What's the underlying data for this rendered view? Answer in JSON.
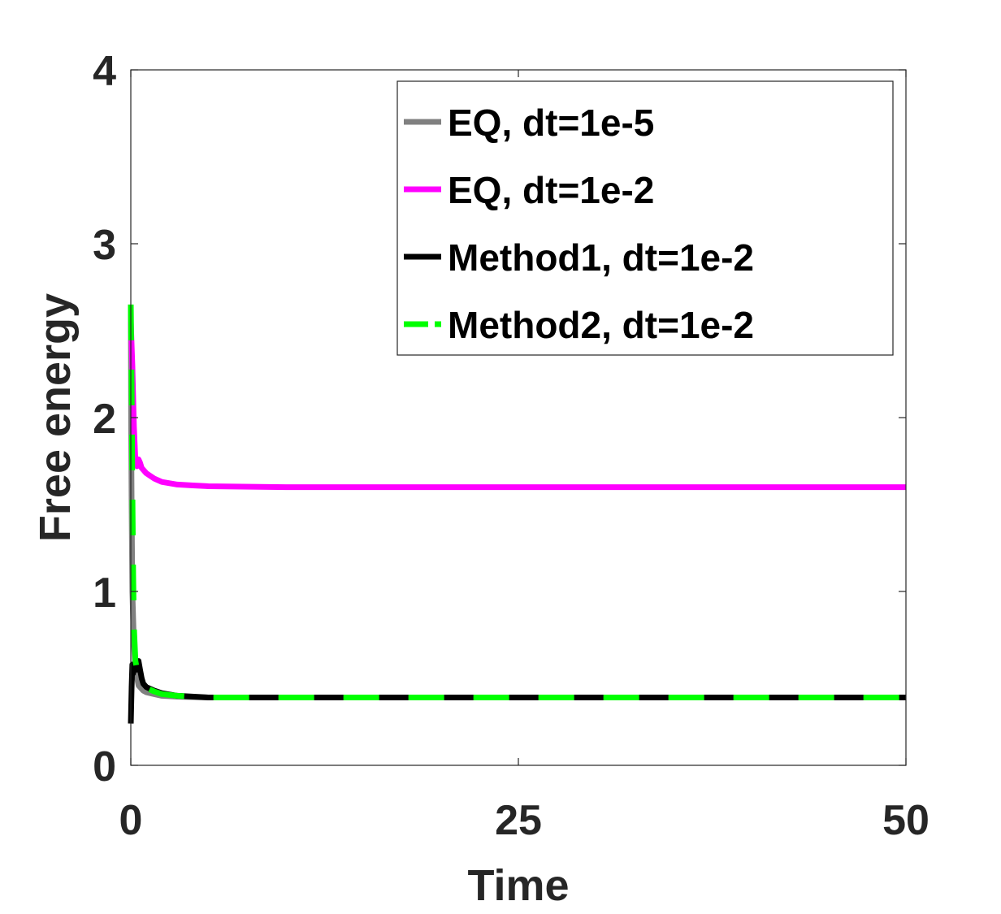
{
  "chart_data": {
    "type": "line",
    "xlabel": "Time",
    "ylabel": "Free energy",
    "xlim": [
      0,
      50
    ],
    "ylim": [
      0,
      4
    ],
    "xticks": [
      0,
      25,
      50
    ],
    "yticks": [
      0,
      1,
      2,
      3,
      4
    ],
    "grid": false,
    "legend_position": "top-right",
    "series": [
      {
        "name": "EQ, dt=1e-5",
        "color": "#808080",
        "style": "solid",
        "x": [
          0,
          0.02,
          0.05,
          0.1,
          0.2,
          0.3,
          0.5,
          0.8,
          1,
          1.5,
          2,
          3,
          5,
          10,
          20,
          30,
          40,
          50
        ],
        "y": [
          2.65,
          2.0,
          1.5,
          1.0,
          0.7,
          0.55,
          0.46,
          0.43,
          0.42,
          0.41,
          0.4,
          0.395,
          0.39,
          0.39,
          0.39,
          0.39,
          0.39,
          0.39
        ]
      },
      {
        "name": "EQ, dt=1e-2",
        "color": "#FF00FF",
        "style": "solid",
        "x": [
          0,
          0.1,
          0.2,
          0.3,
          0.4,
          0.5,
          0.6,
          0.7,
          1,
          1.5,
          2,
          3,
          4,
          5,
          10,
          20,
          30,
          40,
          50
        ],
        "y": [
          2.55,
          2.3,
          1.95,
          1.75,
          1.72,
          1.76,
          1.74,
          1.71,
          1.68,
          1.65,
          1.63,
          1.615,
          1.61,
          1.605,
          1.6,
          1.6,
          1.6,
          1.6,
          1.6
        ]
      },
      {
        "name": "Method1, dt=1e-2",
        "color": "#000000",
        "style": "solid",
        "x": [
          0,
          0.05,
          0.1,
          0.15,
          0.2,
          0.3,
          0.4,
          0.5,
          0.6,
          0.7,
          0.8,
          1,
          1.5,
          2,
          3,
          5,
          10,
          20,
          30,
          40,
          50
        ],
        "y": [
          0.24,
          0.45,
          0.58,
          0.53,
          0.55,
          0.56,
          0.55,
          0.6,
          0.55,
          0.5,
          0.47,
          0.45,
          0.43,
          0.415,
          0.4,
          0.39,
          0.39,
          0.39,
          0.39,
          0.39,
          0.39
        ]
      },
      {
        "name": "Method2, dt=1e-2",
        "color": "#00FF00",
        "style": "dashed",
        "x": [
          0,
          0.05,
          0.1,
          0.15,
          0.2,
          0.3,
          0.5,
          0.8,
          1,
          1.5,
          2,
          3,
          4,
          5,
          10,
          20,
          30,
          40,
          50
        ],
        "y": [
          2.65,
          2.2,
          1.6,
          1.1,
          0.8,
          0.6,
          0.5,
          0.46,
          0.445,
          0.425,
          0.41,
          0.4,
          0.395,
          0.39,
          0.39,
          0.39,
          0.39,
          0.39,
          0.39
        ]
      }
    ]
  }
}
